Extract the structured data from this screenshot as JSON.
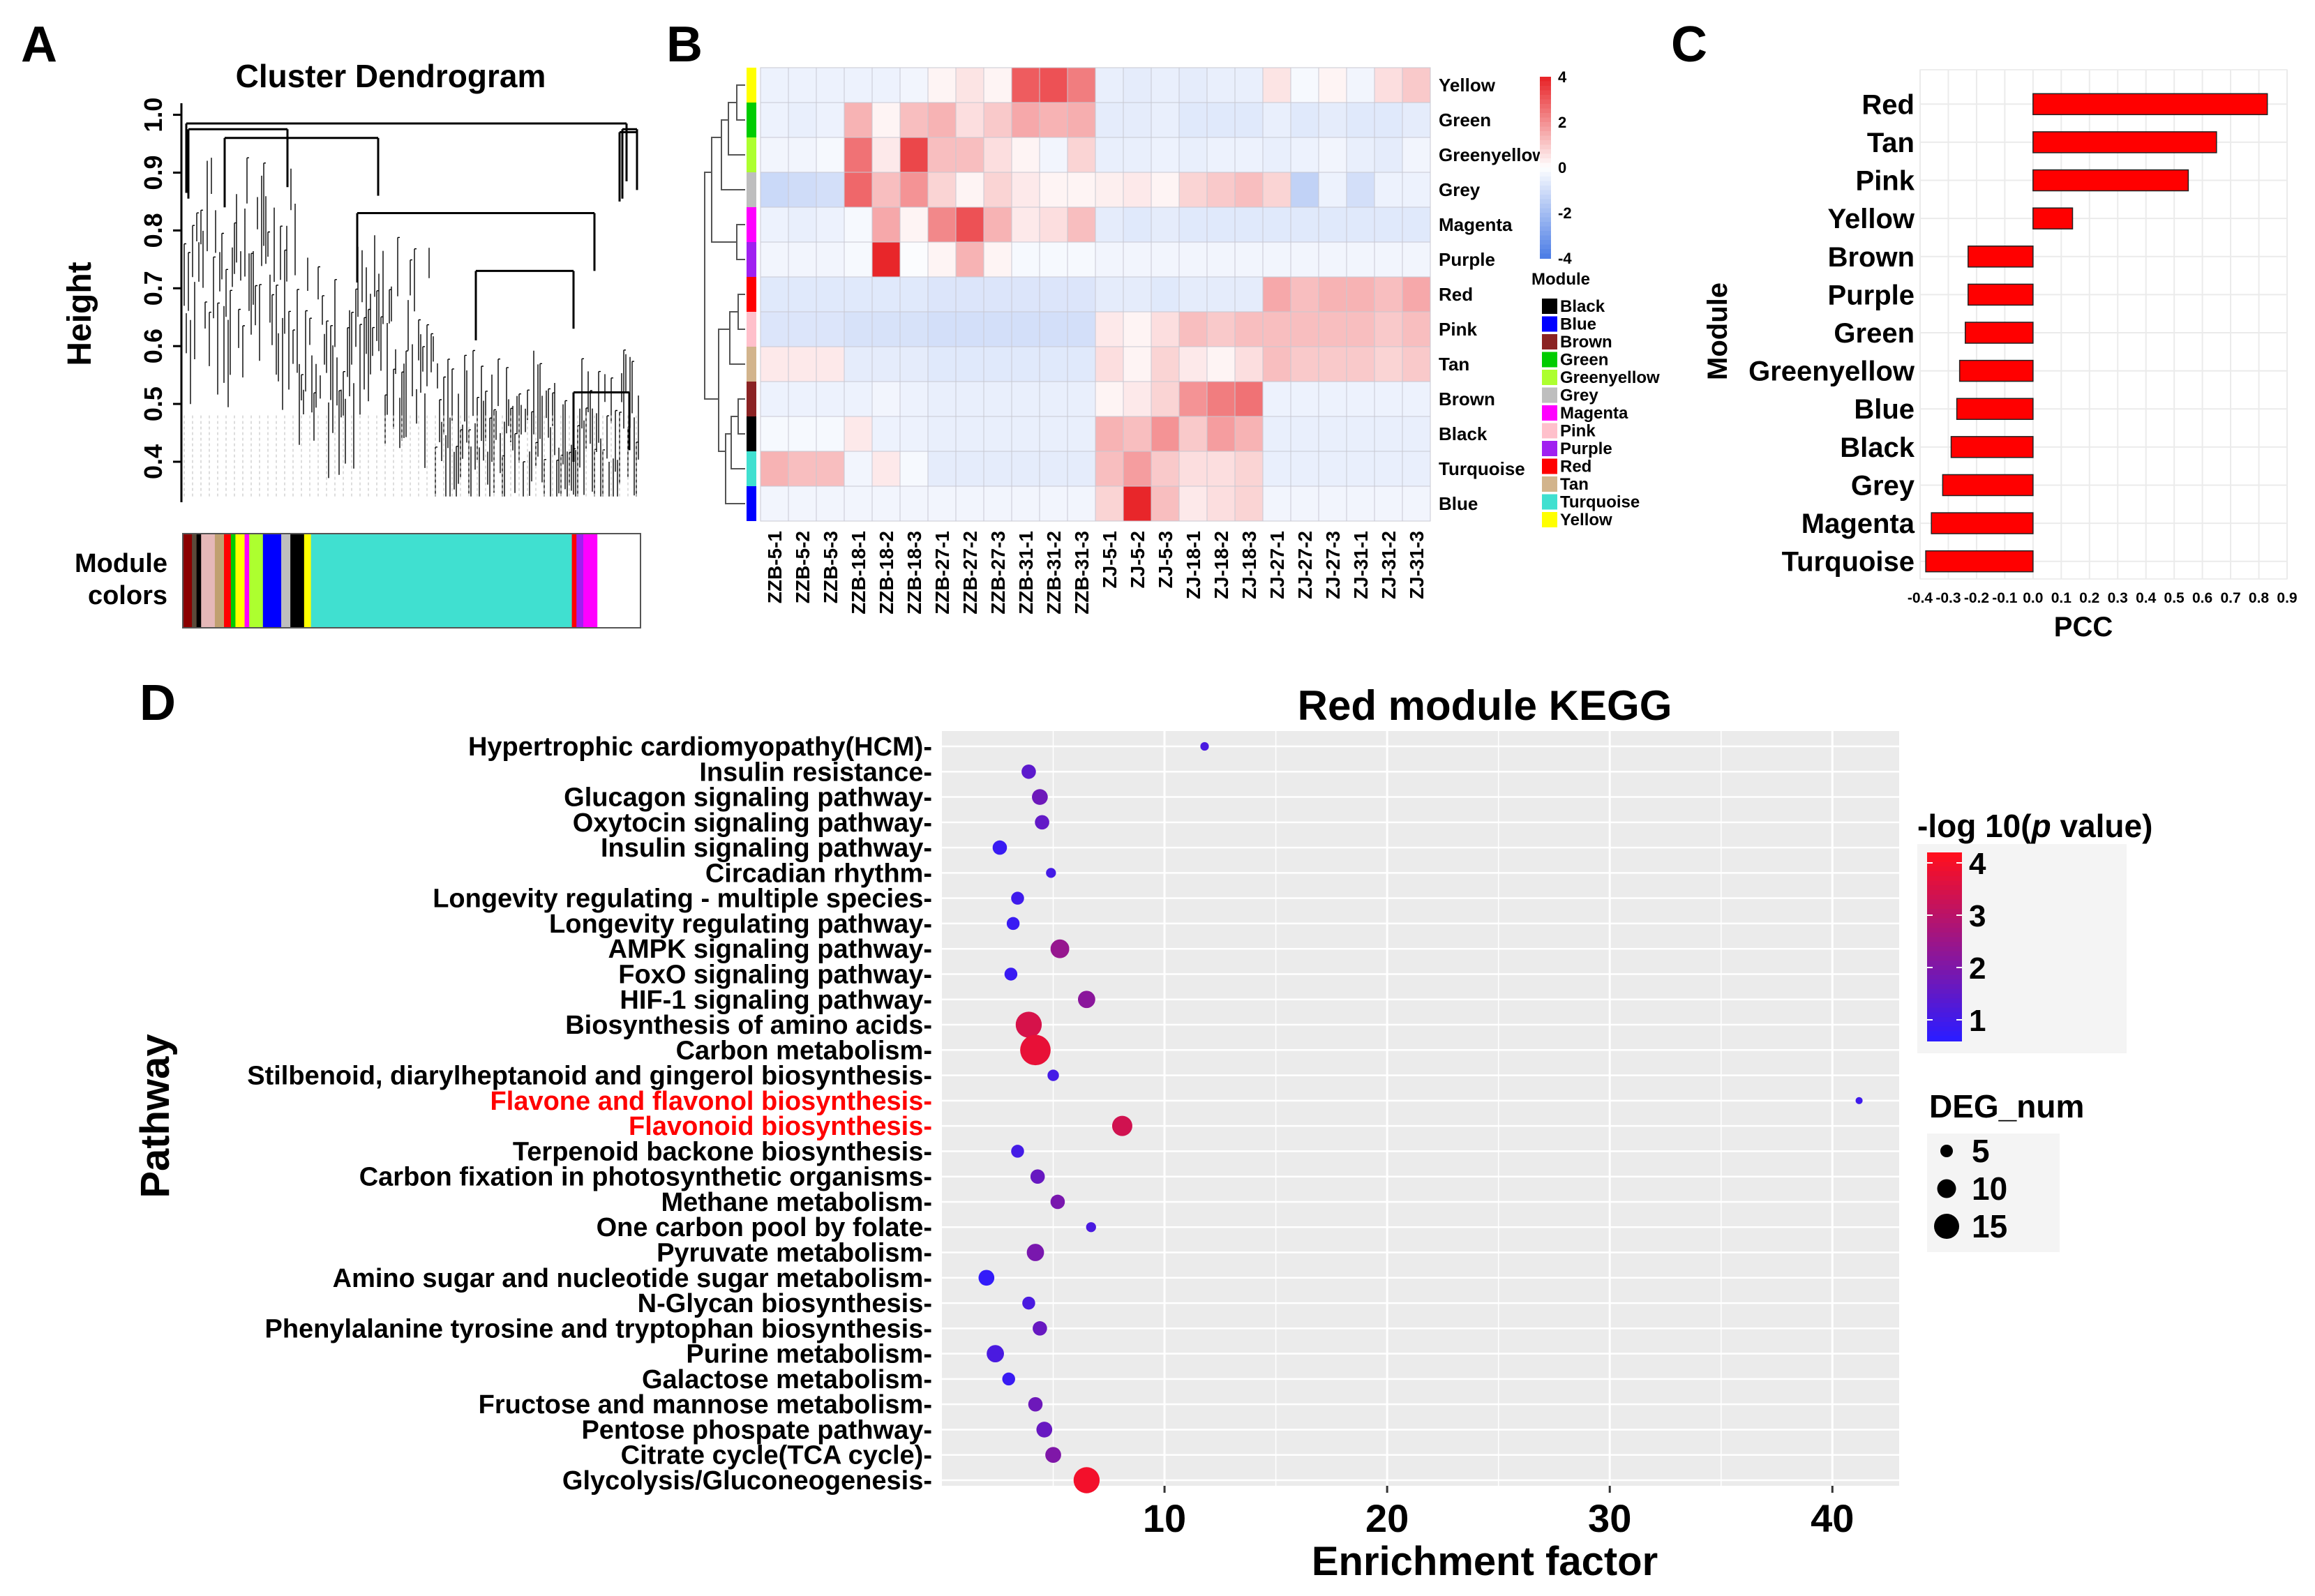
{
  "panels": {
    "A": {
      "label": "A",
      "chart_data": {
        "type": "dendrogram",
        "title": "Cluster Dendrogram",
        "ylabel": "Height",
        "yticks": [
          "1.0",
          "0.9",
          "0.8",
          "0.7",
          "0.6",
          "0.5",
          "0.4"
        ],
        "ylim": [
          0.33,
          1.02
        ],
        "colorbar_label": [
          "Module",
          "colors"
        ],
        "module_color_segments": [
          {
            "color": "#8b0000",
            "frac": 0.02
          },
          {
            "color": "#5a4a3a",
            "frac": 0.01
          },
          {
            "color": "#000000",
            "frac": 0.01
          },
          {
            "color": "#e5b8b8",
            "frac": 0.03
          },
          {
            "color": "#c0a070",
            "frac": 0.02
          },
          {
            "color": "#ff0000",
            "frac": 0.015
          },
          {
            "color": "#00cc00",
            "frac": 0.01
          },
          {
            "color": "#ffff00",
            "frac": 0.02
          },
          {
            "color": "#ff00ff",
            "frac": 0.01
          },
          {
            "color": "#adff2f",
            "frac": 0.03
          },
          {
            "color": "#0000ff",
            "frac": 0.04
          },
          {
            "color": "#bebebe",
            "frac": 0.02
          },
          {
            "color": "#000000",
            "frac": 0.03
          },
          {
            "color": "#ffff00",
            "frac": 0.015
          },
          {
            "color": "#40e0d0",
            "frac": 0.57
          },
          {
            "color": "#ff0000",
            "frac": 0.01
          },
          {
            "color": "#a020f0",
            "frac": 0.015
          },
          {
            "color": "#ff00ff",
            "frac": 0.03
          }
        ]
      }
    },
    "B": {
      "label": "B",
      "chart_data": {
        "type": "heatmap",
        "columns": [
          "ZZB-5-1",
          "ZZB-5-2",
          "ZZB-5-3",
          "ZZB-18-1",
          "ZZB-18-2",
          "ZZB-18-3",
          "ZZB-27-1",
          "ZZB-27-2",
          "ZZB-27-3",
          "ZZB-31-1",
          "ZZB-31-2",
          "ZZB-31-3",
          "ZJ-5-1",
          "ZJ-5-2",
          "ZJ-5-3",
          "ZJ-18-1",
          "ZJ-18-2",
          "ZJ-18-3",
          "ZJ-27-1",
          "ZJ-27-2",
          "ZJ-27-3",
          "ZJ-31-1",
          "ZJ-31-2",
          "ZJ-31-3"
        ],
        "rows": [
          {
            "name": "Yellow",
            "color": "#ffff00",
            "values": [
              -0.4,
              -0.4,
              -0.4,
              -0.4,
              -0.4,
              -0.3,
              0.2,
              0.5,
              0.2,
              3.0,
              3.2,
              2.4,
              -0.5,
              -0.6,
              -0.5,
              -0.6,
              -0.5,
              -0.5,
              0.5,
              -0.2,
              0.2,
              -0.3,
              0.6,
              1.0
            ]
          },
          {
            "name": "Green",
            "color": "#00cc00",
            "values": [
              -0.4,
              -0.5,
              -0.4,
              1.4,
              0.2,
              1.2,
              1.4,
              0.6,
              1.0,
              1.6,
              1.4,
              1.5,
              -0.6,
              -0.6,
              -0.5,
              -0.7,
              -0.7,
              -0.7,
              -0.5,
              -0.7,
              -0.6,
              -0.7,
              -0.7,
              -0.6
            ]
          },
          {
            "name": "Greenyellow",
            "color": "#adff2f",
            "values": [
              -0.3,
              -0.3,
              -0.2,
              2.6,
              0.4,
              3.4,
              1.2,
              1.2,
              0.6,
              0.2,
              -0.3,
              0.8,
              -0.5,
              -0.5,
              -0.4,
              -0.5,
              -0.4,
              -0.4,
              -0.5,
              -0.4,
              -0.3,
              -0.5,
              -0.6,
              -0.3
            ]
          },
          {
            "name": "Grey",
            "color": "#bebebe",
            "values": [
              -1.2,
              -1.1,
              -1.0,
              2.8,
              1.2,
              2.0,
              0.8,
              0.2,
              0.8,
              0.4,
              0.2,
              0.2,
              0.3,
              0.4,
              0.2,
              0.8,
              1.0,
              1.2,
              0.8,
              -1.4,
              -0.4,
              -1.0,
              -0.4,
              -0.4
            ]
          },
          {
            "name": "Magenta",
            "color": "#ff00ff",
            "values": [
              -0.4,
              -0.5,
              -0.4,
              -0.2,
              1.6,
              0.2,
              2.2,
              3.2,
              1.4,
              0.4,
              0.6,
              1.2,
              -0.6,
              -0.7,
              -0.6,
              -0.7,
              -0.7,
              -0.7,
              -0.7,
              -0.7,
              -0.7,
              -0.7,
              -0.7,
              -0.7
            ]
          },
          {
            "name": "Purple",
            "color": "#a020f0",
            "values": [
              -0.3,
              -0.3,
              -0.3,
              -0.2,
              4.4,
              -0.1,
              0.2,
              1.4,
              0.2,
              -0.2,
              -0.2,
              -0.2,
              -0.3,
              -0.3,
              -0.3,
              -0.3,
              -0.3,
              -0.3,
              -0.3,
              -0.3,
              -0.3,
              -0.3,
              -0.3,
              -0.3
            ]
          },
          {
            "name": "Red",
            "color": "#ff0000",
            "values": [
              -0.7,
              -0.7,
              -0.7,
              -0.7,
              -0.7,
              -0.7,
              -0.8,
              -0.8,
              -0.8,
              -0.8,
              -0.8,
              -0.8,
              -0.6,
              -0.6,
              -0.7,
              -0.6,
              -0.6,
              -0.6,
              1.6,
              1.2,
              1.4,
              1.4,
              1.2,
              1.6
            ]
          },
          {
            "name": "Pink",
            "color": "#ffc0cb",
            "values": [
              -0.8,
              -0.8,
              -0.8,
              -0.9,
              -0.9,
              -0.9,
              -1.0,
              -1.0,
              -1.0,
              -1.0,
              -1.0,
              -1.0,
              0.4,
              0.2,
              0.6,
              1.2,
              1.0,
              1.2,
              1.2,
              1.2,
              1.2,
              1.2,
              1.0,
              1.2
            ]
          },
          {
            "name": "Tan",
            "color": "#d2b48c",
            "values": [
              0.4,
              0.4,
              0.4,
              -0.6,
              -0.6,
              -0.6,
              -0.7,
              -0.7,
              -0.7,
              -0.7,
              -0.7,
              -0.7,
              0.6,
              0.2,
              0.8,
              0.4,
              0.2,
              0.6,
              1.2,
              1.0,
              1.0,
              1.0,
              0.8,
              1.0
            ]
          },
          {
            "name": "Brown",
            "color": "#8b2323",
            "values": [
              -0.4,
              -0.4,
              -0.4,
              -0.4,
              -0.3,
              -0.4,
              -0.5,
              -0.5,
              -0.5,
              -0.5,
              -0.5,
              -0.5,
              0.2,
              0.4,
              0.8,
              2.0,
              2.4,
              2.6,
              -0.4,
              -0.4,
              -0.4,
              -0.4,
              -0.4,
              -0.4
            ]
          },
          {
            "name": "Black",
            "color": "#000000",
            "values": [
              -0.2,
              -0.2,
              -0.2,
              0.4,
              -0.4,
              -0.4,
              -0.5,
              -0.5,
              -0.5,
              -0.5,
              -0.5,
              -0.5,
              1.4,
              1.2,
              2.0,
              1.0,
              1.8,
              1.4,
              -0.5,
              -0.5,
              -0.5,
              -0.5,
              -0.5,
              -0.5
            ]
          },
          {
            "name": "Turquoise",
            "color": "#40e0d0",
            "values": [
              1.4,
              1.2,
              1.2,
              -0.3,
              0.4,
              -0.2,
              -0.6,
              -0.6,
              -0.6,
              -0.6,
              -0.6,
              -0.6,
              1.2,
              1.8,
              1.0,
              0.6,
              0.6,
              0.8,
              -0.5,
              -0.5,
              -0.5,
              -0.5,
              -0.5,
              -0.5
            ]
          },
          {
            "name": "Blue",
            "color": "#0000ff",
            "values": [
              -0.3,
              -0.3,
              -0.3,
              -0.3,
              -0.3,
              -0.3,
              -0.3,
              -0.3,
              -0.3,
              -0.3,
              -0.3,
              -0.3,
              0.8,
              4.0,
              1.2,
              0.4,
              0.6,
              0.8,
              -0.3,
              -0.3,
              -0.3,
              -0.3,
              -0.3,
              -0.3
            ]
          }
        ],
        "colorscale": {
          "min": -4,
          "max": 4,
          "ticks": [
            "4",
            "2",
            "0",
            "-2",
            "-4"
          ],
          "low": "#4f7fe6",
          "mid": "#ffffff",
          "high": "#e8262a"
        },
        "legend_title": "Module",
        "legend": [
          {
            "name": "Black",
            "color": "#000000"
          },
          {
            "name": "Blue",
            "color": "#0000ff"
          },
          {
            "name": "Brown",
            "color": "#8b2323"
          },
          {
            "name": "Green",
            "color": "#00cc00"
          },
          {
            "name": "Greenyellow",
            "color": "#adff2f"
          },
          {
            "name": "Grey",
            "color": "#bebebe"
          },
          {
            "name": "Magenta",
            "color": "#ff00ff"
          },
          {
            "name": "Pink",
            "color": "#ffc0cb"
          },
          {
            "name": "Purple",
            "color": "#a020f0"
          },
          {
            "name": "Red",
            "color": "#ff0000"
          },
          {
            "name": "Tan",
            "color": "#d2b48c"
          },
          {
            "name": "Turquoise",
            "color": "#40e0d0"
          },
          {
            "name": "Yellow",
            "color": "#ffff00"
          }
        ]
      }
    },
    "C": {
      "label": "C",
      "chart_data": {
        "type": "bar",
        "orientation": "horizontal",
        "categories": [
          "Red",
          "Tan",
          "Pink",
          "Yellow",
          "Brown",
          "Purple",
          "Green",
          "Greenyellow",
          "Blue",
          "Black",
          "Grey",
          "Magenta",
          "Turquoise"
        ],
        "values": [
          0.83,
          0.65,
          0.55,
          0.14,
          -0.23,
          -0.23,
          -0.24,
          -0.26,
          -0.27,
          -0.29,
          -0.32,
          -0.36,
          -0.38
        ],
        "xlabel": "PCC",
        "ylabel": "Module",
        "xlim": [
          -0.4,
          0.9
        ],
        "xticks": [
          "-0.4",
          "-0.3",
          "-0.2",
          "-0.1",
          "0.0",
          "0.1",
          "0.2",
          "0.3",
          "0.4",
          "0.5",
          "0.6",
          "0.7",
          "0.8",
          "0.9"
        ],
        "bar_color": "#ff0000"
      }
    },
    "D": {
      "label": "D",
      "chart_data": {
        "type": "scatter",
        "title": "Red module KEGG",
        "xlabel": "Enrichment factor",
        "ylabel": "Pathway",
        "xlim": [
          0,
          43
        ],
        "xticks": [
          "10",
          "20",
          "30",
          "40"
        ],
        "points": [
          {
            "pathway": "Hypertrophic cardiomyopathy(HCM)",
            "x": 11.8,
            "deg": 2,
            "logp": 1.1,
            "highlight": false
          },
          {
            "pathway": "Insulin resistance",
            "x": 3.9,
            "deg": 6,
            "logp": 1.4,
            "highlight": false
          },
          {
            "pathway": "Glucagon signaling pathway",
            "x": 4.4,
            "deg": 7,
            "logp": 1.7,
            "highlight": false
          },
          {
            "pathway": "Oxytocin signaling pathway",
            "x": 4.5,
            "deg": 6,
            "logp": 1.5,
            "highlight": false
          },
          {
            "pathway": "Insulin signaling pathway",
            "x": 2.6,
            "deg": 6,
            "logp": 0.8,
            "highlight": false
          },
          {
            "pathway": "Circadian rhythm",
            "x": 4.9,
            "deg": 3,
            "logp": 1.0,
            "highlight": false
          },
          {
            "pathway": "Longevity regulating - multiple species",
            "x": 3.4,
            "deg": 5,
            "logp": 0.9,
            "highlight": false
          },
          {
            "pathway": "Longevity regulating pathway",
            "x": 3.2,
            "deg": 5,
            "logp": 0.8,
            "highlight": false
          },
          {
            "pathway": "AMPK signaling pathway",
            "x": 5.3,
            "deg": 9,
            "logp": 2.4,
            "highlight": false
          },
          {
            "pathway": "FoxO signaling pathway",
            "x": 3.1,
            "deg": 5,
            "logp": 0.8,
            "highlight": false
          },
          {
            "pathway": "HIF-1 signaling pathway",
            "x": 6.5,
            "deg": 8,
            "logp": 2.2,
            "highlight": false
          },
          {
            "pathway": "Biosynthesis of amino acids",
            "x": 3.9,
            "deg": 14,
            "logp": 3.5,
            "highlight": false
          },
          {
            "pathway": "Carbon metabolism",
            "x": 4.2,
            "deg": 17,
            "logp": 3.8,
            "highlight": false
          },
          {
            "pathway": "Stilbenoid, diarylheptanoid and gingerol biosynthesis",
            "x": 5.0,
            "deg": 4,
            "logp": 1.0,
            "highlight": false
          },
          {
            "pathway": "Flavone and flavonol biosynthesis",
            "x": 41.2,
            "deg": 1,
            "logp": 0.9,
            "highlight": true
          },
          {
            "pathway": "Flavonoid biosynthesis",
            "x": 8.1,
            "deg": 10,
            "logp": 3.4,
            "highlight": true
          },
          {
            "pathway": "Terpenoid backone biosynthesis",
            "x": 3.4,
            "deg": 5,
            "logp": 1.0,
            "highlight": false
          },
          {
            "pathway": "Carbon fixation in photosynthetic organisms",
            "x": 4.3,
            "deg": 6,
            "logp": 1.6,
            "highlight": false
          },
          {
            "pathway": "Methane metabolism",
            "x": 5.2,
            "deg": 6,
            "logp": 1.9,
            "highlight": false
          },
          {
            "pathway": "One carbon pool by folate",
            "x": 6.7,
            "deg": 3,
            "logp": 1.1,
            "highlight": false
          },
          {
            "pathway": "Pyruvate metabolism",
            "x": 4.2,
            "deg": 8,
            "logp": 1.9,
            "highlight": false
          },
          {
            "pathway": "Amino sugar and nucleotide sugar metabolism",
            "x": 2.0,
            "deg": 7,
            "logp": 0.7,
            "highlight": false
          },
          {
            "pathway": "N-Glycan biosynthesis",
            "x": 3.9,
            "deg": 5,
            "logp": 1.1,
            "highlight": false
          },
          {
            "pathway": "Phenylalanine tyrosine and tryptophan biosynthesis",
            "x": 4.4,
            "deg": 6,
            "logp": 1.6,
            "highlight": false
          },
          {
            "pathway": "Purine metabolism",
            "x": 2.4,
            "deg": 8,
            "logp": 1.1,
            "highlight": false
          },
          {
            "pathway": "Galactose metabolism",
            "x": 3.0,
            "deg": 5,
            "logp": 0.8,
            "highlight": false
          },
          {
            "pathway": "Fructose and mannose metabolism",
            "x": 4.2,
            "deg": 6,
            "logp": 1.7,
            "highlight": false
          },
          {
            "pathway": "Pentose phospate pathway",
            "x": 4.6,
            "deg": 7,
            "logp": 1.6,
            "highlight": false
          },
          {
            "pathway": "Citrate cycle(TCA cycle)",
            "x": 5.0,
            "deg": 7,
            "logp": 2.0,
            "highlight": false
          },
          {
            "pathway": "Glycolysis/Gluconeogenesis",
            "x": 6.5,
            "deg": 14,
            "logp": 4.0,
            "highlight": false
          }
        ],
        "color_legend_title": "-log 10(p value)",
        "color_legend_ticks": [
          "4",
          "3",
          "2",
          "1"
        ],
        "color_range": [
          0.6,
          4.2
        ],
        "color_low": "#2d1cff",
        "color_high": "#ff0f1e",
        "size_legend_title": "DEG_num",
        "size_legend_entries": [
          "5",
          "10",
          "15"
        ],
        "highlight_color": "#ff0000"
      }
    }
  }
}
